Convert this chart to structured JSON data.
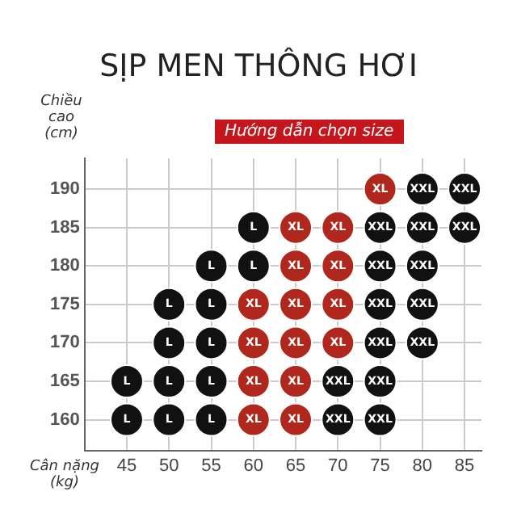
{
  "chart_data": {
    "type": "scatter",
    "title": "SỊP MEN THÔNG HƠI",
    "subtitle": "Hướng dẫn chọn size",
    "xlabel": "Cân nặng (kg)",
    "ylabel": "Chiều cao (cm)",
    "categories": [
      "45",
      "50",
      "55",
      "60",
      "65",
      "70",
      "75",
      "80",
      "85"
    ],
    "series": [
      {
        "name": "L",
        "color": "#111111",
        "x": [
          "60",
          "55",
          "60",
          "50",
          "55",
          "50",
          "55",
          "45",
          "50",
          "55",
          "45",
          "50",
          "55"
        ],
        "values": [
          185,
          180,
          180,
          175,
          175,
          170,
          170,
          165,
          165,
          165,
          160,
          160,
          160
        ]
      },
      {
        "name": "XL",
        "color": "#b0271d",
        "x": [
          "75",
          "65",
          "70",
          "65",
          "70",
          "60",
          "65",
          "70",
          "60",
          "65",
          "70",
          "60",
          "65",
          "60",
          "65"
        ],
        "values": [
          190,
          185,
          185,
          180,
          180,
          175,
          175,
          175,
          170,
          170,
          170,
          165,
          165,
          160,
          160
        ]
      },
      {
        "name": "XXL",
        "color": "#111111",
        "x": [
          "80",
          "85",
          "75",
          "80",
          "85",
          "75",
          "80",
          "75",
          "80",
          "75",
          "80",
          "70",
          "75",
          "70",
          "75"
        ],
        "values": [
          190,
          190,
          185,
          185,
          185,
          180,
          180,
          175,
          175,
          170,
          170,
          165,
          165,
          160,
          160
        ]
      }
    ],
    "ylim": [
      156,
      194
    ],
    "yticks": [
      160,
      165,
      170,
      175,
      180,
      185,
      190
    ],
    "marker": "circle",
    "grid": true
  }
}
